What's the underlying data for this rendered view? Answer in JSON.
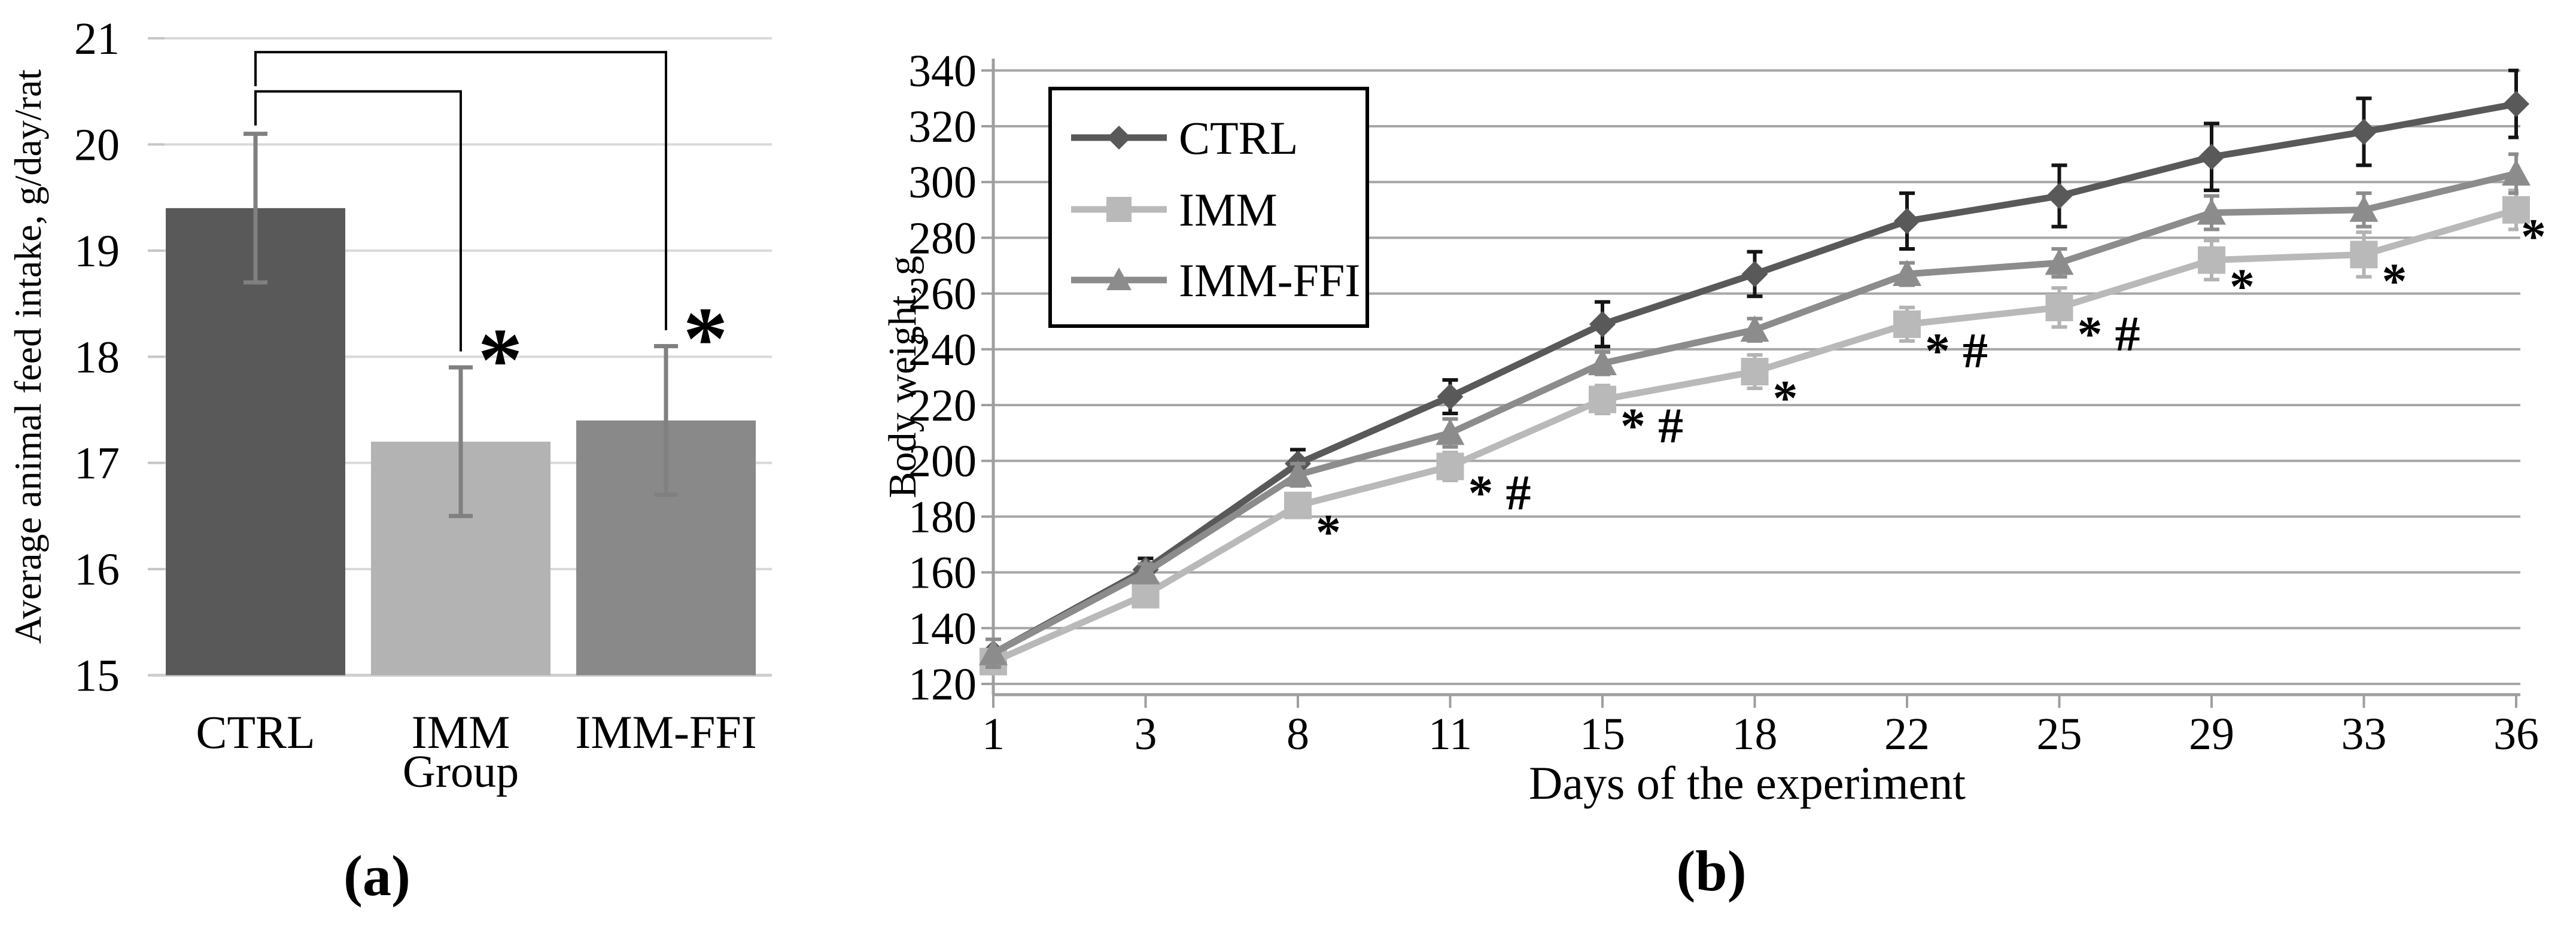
{
  "figure_background": "#ffffff",
  "chart_data": [
    {
      "id": "feed-intake-bar-chart",
      "type": "bar",
      "caption": "(a)",
      "xlabel": "Group",
      "ylabel": "Average animal feed intake, g/day/rat",
      "ylim": [
        15,
        21
      ],
      "yticks": [
        21,
        20,
        19,
        18,
        17,
        16,
        15
      ],
      "grid_on": true,
      "categories": [
        "CTRL",
        "IMM",
        "IMM-FFI"
      ],
      "values": [
        19.4,
        17.2,
        17.4
      ],
      "errors": [
        0.7,
        0.7,
        0.7
      ],
      "bar_colors": [
        "#595959",
        "#b3b3b3",
        "#898989"
      ],
      "error_color": "#808080",
      "grid_color": "#d9d9d9",
      "axis_color": "#cfcfcf",
      "significance": [
        {
          "from": "CTRL",
          "to": "IMM",
          "label": "*",
          "level": 20.5
        },
        {
          "from": "CTRL",
          "to": "IMM-FFI",
          "label": "*",
          "level": 20.87
        }
      ]
    },
    {
      "id": "body-weight-line-chart",
      "type": "line",
      "caption": "(b)",
      "xlabel": "Days of the experiment",
      "ylabel": "Body weight, g",
      "ylim": [
        120,
        340
      ],
      "yticks": [
        340,
        320,
        300,
        280,
        260,
        240,
        220,
        200,
        180,
        160,
        140,
        120
      ],
      "grid_on": true,
      "grid_color": "#a6a6a6",
      "axis_color": "#9e9e9e",
      "categories": [
        1,
        3,
        8,
        11,
        15,
        18,
        22,
        25,
        29,
        33,
        36
      ],
      "legend": {
        "position": "top-left-inside",
        "entries": [
          "CTRL",
          "IMM",
          "IMM-FFI"
        ]
      },
      "series": [
        {
          "name": "CTRL",
          "marker": "diamond",
          "color": "#595959",
          "error_color": "#141414",
          "values": [
            131,
            161,
            199,
            223,
            249,
            267,
            286,
            295,
            309,
            318,
            328
          ],
          "errors": [
            5,
            4,
            5,
            6,
            8,
            8,
            10,
            11,
            12,
            12,
            12
          ]
        },
        {
          "name": "IMM",
          "marker": "square",
          "color": "#b9b9b9",
          "error_color": "#b3b3b3",
          "values": [
            128,
            152,
            184,
            198,
            222,
            232,
            249,
            255,
            272,
            274,
            290
          ],
          "errors": [
            4,
            4,
            4,
            5,
            5,
            6,
            6,
            7,
            7,
            8,
            7
          ]
        },
        {
          "name": "IMM-FFI",
          "marker": "triangle",
          "color": "#8c8c8c",
          "error_color": "#8c8c8c",
          "values": [
            131,
            160,
            195,
            210,
            235,
            247,
            267,
            271,
            289,
            290,
            303
          ],
          "errors": [
            5,
            3,
            4,
            5,
            4,
            4,
            4,
            5,
            6,
            6,
            7
          ]
        }
      ],
      "annotations": [
        {
          "day": 8,
          "series": "IMM",
          "text": "*"
        },
        {
          "day": 11,
          "series": "IMM",
          "text": "* #"
        },
        {
          "day": 15,
          "series": "IMM",
          "text": "* #"
        },
        {
          "day": 18,
          "series": "IMM",
          "text": "*"
        },
        {
          "day": 22,
          "series": "IMM",
          "text": "* #"
        },
        {
          "day": 25,
          "series": "IMM",
          "text": "* #"
        },
        {
          "day": 29,
          "series": "IMM",
          "text": "*"
        },
        {
          "day": 33,
          "series": "IMM",
          "text": "*"
        },
        {
          "day": 36,
          "series": "IMM",
          "text": "*"
        }
      ]
    }
  ]
}
